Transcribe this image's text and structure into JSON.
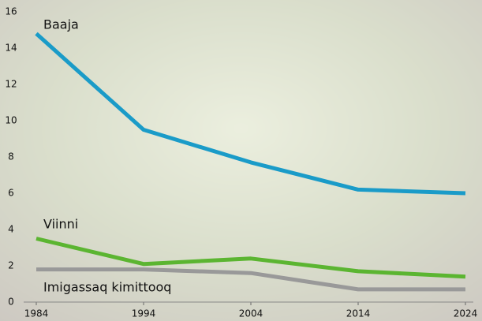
{
  "chart_data": {
    "type": "line",
    "x": [
      1984,
      1994,
      2004,
      2014,
      2024
    ],
    "series": [
      {
        "name": "Baaja",
        "color": "#1a9bc8",
        "values": [
          14.8,
          9.5,
          7.7,
          6.2,
          6.0
        ]
      },
      {
        "name": "Viinni",
        "color": "#5bb531",
        "values": [
          3.5,
          2.1,
          2.4,
          1.7,
          1.4
        ]
      },
      {
        "name": "Imigassaq kimittooq",
        "color": "#999999",
        "values": [
          1.8,
          1.8,
          1.6,
          0.7,
          0.7
        ]
      }
    ],
    "xlim": [
      1984,
      2024
    ],
    "xticks": [
      1984,
      1994,
      2004,
      2014,
      2024
    ],
    "ylim": [
      0,
      16
    ],
    "yticks": [
      0,
      2,
      4,
      6,
      8,
      10,
      12,
      14,
      16
    ]
  }
}
